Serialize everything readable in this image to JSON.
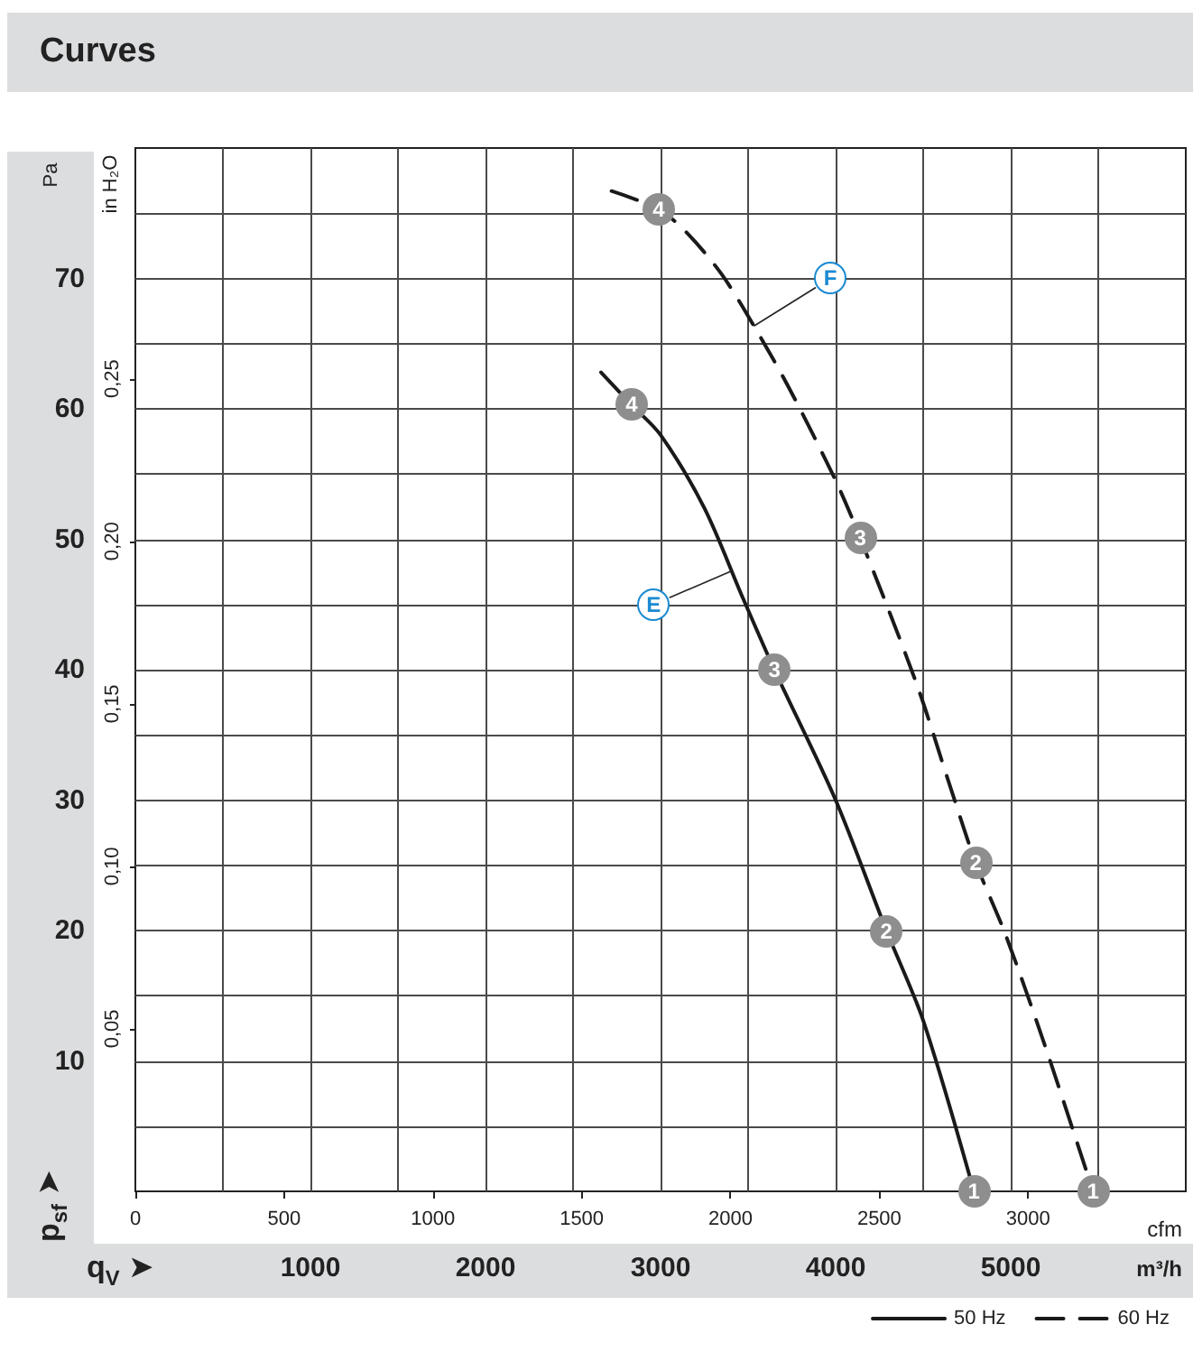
{
  "chart_data": {
    "type": "line",
    "title": "Curves",
    "xlabel": "m³/h",
    "x2label": "cfm",
    "ylabel": "Pa",
    "y2label": "in H₂O",
    "xlim": [
      0,
      6000
    ],
    "xticks": [
      {
        "value": 500,
        "label": null
      },
      1000,
      {
        "value": 1500,
        "label": null
      },
      2000,
      {
        "value": 2500,
        "label": null
      },
      3000,
      {
        "value": 3500,
        "label": null
      },
      4000,
      {
        "value": 4500,
        "label": null
      },
      5000,
      {
        "value": 5500,
        "label": null
      }
    ],
    "x2lim": [
      0,
      3530
    ],
    "x2ticks": [
      0,
      500,
      1000,
      1500,
      2000,
      2500,
      3000
    ],
    "ylim": [
      0,
      80
    ],
    "yticks": [
      {
        "value": 5,
        "label": null
      },
      10,
      {
        "value": 15,
        "label": null
      },
      20,
      {
        "value": 25,
        "label": null
      },
      30,
      {
        "value": 35,
        "label": null
      },
      40,
      {
        "value": 45,
        "label": null
      },
      50,
      {
        "value": 55,
        "label": null
      },
      60,
      {
        "value": 65,
        "label": null
      },
      70,
      {
        "value": 75,
        "label": null
      }
    ],
    "y2lim": [
      0,
      0.321
    ],
    "y2ticks": [
      {
        "value": 0.05,
        "label": "0,05"
      },
      {
        "value": 0.1,
        "label": "0,10"
      },
      {
        "value": 0.15,
        "label": "0,15"
      },
      {
        "value": 0.2,
        "label": "0,20"
      },
      {
        "value": 0.25,
        "label": "0,25"
      }
    ],
    "grid": true,
    "legend": "bottom right",
    "marker": "none",
    "series": [
      {
        "name": "50 Hz",
        "color": "#1a1a1a",
        "line_style": "solid",
        "x": [
          2660,
          2835,
          3000,
          3250,
          3470,
          3650,
          4000,
          4290,
          4500,
          4790
        ],
        "values": [
          62.8,
          60.3,
          58.0,
          52.4,
          45.5,
          40.0,
          30.0,
          20.0,
          13.1,
          0
        ]
      },
      {
        "name": "60 Hz",
        "color": "#1a1a1a",
        "line_style": "dashed",
        "x": [
          2720,
          2990,
          3150,
          3350,
          3540,
          3730,
          4000,
          4140,
          4460,
          4660,
          4800,
          4970,
          5200,
          5470
        ],
        "values": [
          76.7,
          75.3,
          73.5,
          70.3,
          66.2,
          61.7,
          54.5,
          50.1,
          39.0,
          30.8,
          25.2,
          19.7,
          11.0,
          0
        ]
      }
    ],
    "annotations": [
      "p$_{sf}$ ➤",
      "q$_{V}$ ➤",
      {
        "text": "4",
        "x": 2835,
        "y": 60.3
      },
      {
        "text": "3",
        "x": 3650,
        "y": 40.0
      },
      {
        "text": "2",
        "x": 4290,
        "y": 20.0
      },
      {
        "text": "1",
        "x": 4790,
        "y": 0
      },
      {
        "text": "4",
        "x": 2990,
        "y": 75.3
      },
      {
        "text": "3",
        "x": 4140,
        "y": 50.1
      },
      {
        "text": "2",
        "x": 4800,
        "y": 25.2
      },
      {
        "text": "1",
        "x": 5470,
        "y": 0
      },
      {
        "text": "E",
        "x": 2960,
        "y": 45
      },
      {
        "text": "F",
        "x": 3970,
        "y": 70
      }
    ]
  }
}
